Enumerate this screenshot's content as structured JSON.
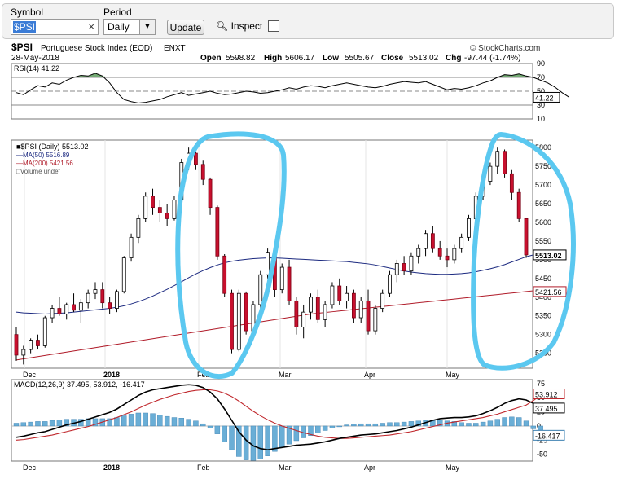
{
  "toolbar": {
    "symbol_label": "Symbol",
    "symbol_value": "$PSI",
    "period_label": "Period",
    "period_value": "Daily",
    "update_label": "Update",
    "inspect_label": "Inspect"
  },
  "header": {
    "ticker": "$PSI",
    "name": "Portuguese Stock Index (EOD)",
    "exchange": "ENXT",
    "source": "© StockCharts.com",
    "date": "28-May-2018",
    "open_label": "Open",
    "open": "5598.82",
    "high_label": "High",
    "high": "5606.17",
    "low_label": "Low",
    "low": "5505.67",
    "close_label": "Close",
    "close": "5513.02",
    "chg_label": "Chg",
    "chg": "-97.44 (-1.74%)"
  },
  "chart_data": [
    {
      "type": "line",
      "title": "RSI(14) 41.22",
      "ylim": [
        10,
        90
      ],
      "ticks": [
        "10",
        "30",
        "50",
        "70",
        "90"
      ],
      "reference_lines": [
        30,
        50,
        70
      ],
      "last_value_label": "41.22",
      "last_value": 41.22,
      "series": [
        {
          "name": "RSI(14)",
          "color": "#000000",
          "values": [
            48,
            45,
            52,
            58,
            56,
            62,
            60,
            66,
            70,
            73,
            72,
            76,
            72,
            62,
            48,
            38,
            35,
            33,
            34,
            36,
            38,
            42,
            45,
            48,
            44,
            46,
            48,
            50,
            47,
            45,
            46,
            48,
            50,
            49,
            47,
            48,
            50,
            52,
            55,
            53,
            56,
            58,
            57,
            55,
            58,
            60,
            62,
            60,
            58,
            56,
            55,
            57,
            60,
            62,
            64,
            63,
            62,
            64,
            60,
            56,
            52,
            54,
            53,
            55,
            58,
            62,
            65,
            70,
            74,
            73,
            75,
            72,
            70,
            66,
            62,
            56,
            48,
            41.22
          ]
        }
      ]
    },
    {
      "type": "candlestick",
      "legend": [
        "$PSI (Daily) 5513.02",
        "MA(50) 5516.89",
        "MA(200) 5421.56",
        "Volume undef"
      ],
      "ylim": [
        5210,
        5820
      ],
      "ticks": [
        "5250",
        "5300",
        "5350",
        "5400",
        "5450",
        "5500",
        "5550",
        "5600",
        "5650",
        "5700",
        "5750",
        "5800"
      ],
      "xlabels": [
        "Dec",
        "2018",
        "Feb",
        "Mar",
        "Apr",
        "May"
      ],
      "price_tags": [
        "5513.02",
        "5421.56"
      ],
      "ohlc": [
        [
          5300,
          5320,
          5230,
          5245
        ],
        [
          5245,
          5270,
          5220,
          5260
        ],
        [
          5260,
          5290,
          5250,
          5285
        ],
        [
          5285,
          5300,
          5260,
          5270
        ],
        [
          5270,
          5350,
          5265,
          5345
        ],
        [
          5345,
          5380,
          5330,
          5370
        ],
        [
          5370,
          5400,
          5350,
          5355
        ],
        [
          5355,
          5385,
          5340,
          5380
        ],
        [
          5380,
          5410,
          5360,
          5365
        ],
        [
          5365,
          5395,
          5330,
          5385
        ],
        [
          5385,
          5420,
          5370,
          5410
        ],
        [
          5410,
          5440,
          5395,
          5420
        ],
        [
          5420,
          5440,
          5370,
          5385
        ],
        [
          5385,
          5400,
          5355,
          5370
        ],
        [
          5370,
          5420,
          5360,
          5415
        ],
        [
          5415,
          5510,
          5410,
          5505
        ],
        [
          5505,
          5570,
          5495,
          5560
        ],
        [
          5560,
          5620,
          5545,
          5610
        ],
        [
          5610,
          5680,
          5600,
          5670
        ],
        [
          5670,
          5690,
          5620,
          5640
        ],
        [
          5640,
          5660,
          5600,
          5625
        ],
        [
          5625,
          5650,
          5590,
          5610
        ],
        [
          5610,
          5670,
          5605,
          5660
        ],
        [
          5660,
          5770,
          5655,
          5760
        ],
        [
          5760,
          5800,
          5740,
          5785
        ],
        [
          5785,
          5790,
          5740,
          5755
        ],
        [
          5755,
          5765,
          5700,
          5715
        ],
        [
          5715,
          5720,
          5620,
          5640
        ],
        [
          5640,
          5645,
          5500,
          5510
        ],
        [
          5510,
          5515,
          5400,
          5410
        ],
        [
          5410,
          5420,
          5250,
          5260
        ],
        [
          5260,
          5420,
          5255,
          5410
        ],
        [
          5410,
          5415,
          5300,
          5310
        ],
        [
          5310,
          5390,
          5290,
          5380
        ],
        [
          5380,
          5470,
          5370,
          5460
        ],
        [
          5460,
          5530,
          5450,
          5520
        ],
        [
          5520,
          5525,
          5400,
          5420
        ],
        [
          5420,
          5490,
          5410,
          5480
        ],
        [
          5480,
          5500,
          5380,
          5390
        ],
        [
          5390,
          5400,
          5300,
          5320
        ],
        [
          5320,
          5380,
          5290,
          5360
        ],
        [
          5360,
          5410,
          5340,
          5400
        ],
        [
          5400,
          5420,
          5330,
          5340
        ],
        [
          5340,
          5390,
          5320,
          5380
        ],
        [
          5380,
          5440,
          5370,
          5430
        ],
        [
          5430,
          5450,
          5380,
          5390
        ],
        [
          5390,
          5430,
          5370,
          5410
        ],
        [
          5410,
          5420,
          5330,
          5345
        ],
        [
          5345,
          5400,
          5330,
          5390
        ],
        [
          5390,
          5420,
          5300,
          5310
        ],
        [
          5310,
          5380,
          5300,
          5370
        ],
        [
          5370,
          5420,
          5360,
          5410
        ],
        [
          5410,
          5470,
          5400,
          5460
        ],
        [
          5460,
          5500,
          5440,
          5490
        ],
        [
          5490,
          5510,
          5460,
          5470
        ],
        [
          5470,
          5520,
          5460,
          5510
        ],
        [
          5510,
          5540,
          5490,
          5530
        ],
        [
          5530,
          5580,
          5510,
          5570
        ],
        [
          5570,
          5590,
          5520,
          5530
        ],
        [
          5530,
          5550,
          5500,
          5510
        ],
        [
          5510,
          5530,
          5480,
          5500
        ],
        [
          5500,
          5540,
          5490,
          5530
        ],
        [
          5530,
          5570,
          5520,
          5560
        ],
        [
          5560,
          5620,
          5550,
          5610
        ],
        [
          5610,
          5680,
          5600,
          5670
        ],
        [
          5670,
          5720,
          5660,
          5710
        ],
        [
          5710,
          5760,
          5700,
          5750
        ],
        [
          5750,
          5800,
          5730,
          5790
        ],
        [
          5790,
          5795,
          5720,
          5730
        ],
        [
          5730,
          5740,
          5660,
          5680
        ],
        [
          5680,
          5690,
          5600,
          5610
        ],
        [
          5610,
          5610,
          5505,
          5513
        ]
      ],
      "series": [
        {
          "name": "MA(50)",
          "color": "#1c2a80",
          "values": [
            5360,
            5358,
            5357,
            5356,
            5355,
            5356,
            5357,
            5358,
            5360,
            5362,
            5364,
            5366,
            5368,
            5370,
            5373,
            5377,
            5382,
            5388,
            5395,
            5403,
            5412,
            5421,
            5431,
            5441,
            5452,
            5462,
            5471,
            5479,
            5486,
            5492,
            5496,
            5499,
            5501,
            5503,
            5504,
            5505,
            5505,
            5504,
            5503,
            5502,
            5501,
            5500,
            5499,
            5498,
            5497,
            5496,
            5495,
            5493,
            5491,
            5489,
            5486,
            5482,
            5478,
            5474,
            5470,
            5467,
            5465,
            5463,
            5462,
            5461,
            5461,
            5462,
            5463,
            5465,
            5468,
            5472,
            5476,
            5481,
            5487,
            5494,
            5501,
            5508,
            5513,
            5516.89
          ]
        },
        {
          "name": "MA(200)",
          "color": "#b01c2a",
          "values": [
            5232,
            5235,
            5238,
            5241,
            5244,
            5247,
            5250,
            5253,
            5256,
            5259,
            5262,
            5265,
            5268,
            5271,
            5274,
            5277,
            5280,
            5283,
            5286,
            5289,
            5292,
            5295,
            5298,
            5301,
            5304,
            5307,
            5310,
            5313,
            5316,
            5319,
            5322,
            5325,
            5328,
            5331,
            5334,
            5337,
            5340,
            5343,
            5346,
            5349,
            5352,
            5355,
            5357,
            5359,
            5361,
            5363,
            5365,
            5367,
            5369,
            5371,
            5373,
            5375,
            5377,
            5379,
            5381,
            5383,
            5385,
            5387,
            5389,
            5391,
            5393,
            5395,
            5397,
            5399,
            5401,
            5403,
            5405,
            5407,
            5409,
            5411,
            5413,
            5415,
            5417,
            5421.56
          ]
        }
      ]
    },
    {
      "type": "line",
      "title": "MACD(12,26,9) 37.495, 53.912, -16.417",
      "ylim": [
        -62,
        82
      ],
      "ticks": [
        "75",
        "50",
        "25",
        "0",
        "-25",
        "-50"
      ],
      "xlabels": [
        "Dec",
        "2018",
        "Feb",
        "Mar",
        "Apr",
        "May"
      ],
      "value_tags": [
        "53.912",
        "37.495",
        "-16.417"
      ],
      "series": [
        {
          "name": "MACD",
          "color": "#000000",
          "values": [
            -20,
            -18,
            -15,
            -12,
            -10,
            -6,
            -2,
            2,
            5,
            8,
            12,
            16,
            20,
            24,
            30,
            38,
            46,
            54,
            60,
            64,
            66,
            68,
            70,
            72,
            73,
            72,
            68,
            60,
            48,
            30,
            10,
            -10,
            -25,
            -35,
            -40,
            -42,
            -40,
            -38,
            -36,
            -34,
            -33,
            -32,
            -30,
            -28,
            -25,
            -22,
            -20,
            -18,
            -16,
            -15,
            -14,
            -12,
            -10,
            -8,
            -5,
            -2,
            2,
            6,
            10,
            13,
            14,
            15,
            15,
            16,
            18,
            22,
            27,
            33,
            40,
            45,
            48,
            46,
            40,
            37.495
          ]
        },
        {
          "name": "Signal",
          "color": "#c0282d",
          "values": [
            -25,
            -24,
            -22,
            -20,
            -18,
            -16,
            -13,
            -10,
            -7,
            -4,
            -1,
            3,
            7,
            11,
            15,
            20,
            25,
            31,
            37,
            42,
            47,
            51,
            55,
            58,
            61,
            63,
            64,
            64,
            62,
            58,
            52,
            44,
            35,
            26,
            18,
            11,
            5,
            0,
            -4,
            -8,
            -12,
            -15,
            -18,
            -20,
            -21,
            -22,
            -22,
            -21,
            -20,
            -19,
            -18,
            -17,
            -16,
            -14,
            -12,
            -10,
            -7,
            -4,
            -1,
            2,
            5,
            7,
            9,
            11,
            13,
            15,
            18,
            21,
            25,
            29,
            33,
            37,
            45,
            53.912
          ]
        },
        {
          "name": "Histogram",
          "color": "#6aaed6",
          "type": "bar",
          "values": [
            5,
            6,
            7,
            8,
            8,
            10,
            11,
            12,
            12,
            12,
            13,
            13,
            13,
            13,
            15,
            18,
            21,
            23,
            23,
            22,
            19,
            17,
            15,
            14,
            12,
            9,
            4,
            -4,
            -14,
            -28,
            -42,
            -54,
            -60,
            -61,
            -58,
            -53,
            -45,
            -38,
            -32,
            -26,
            -21,
            -17,
            -12,
            -8,
            -4,
            0,
            2,
            3,
            4,
            4,
            4,
            5,
            6,
            6,
            7,
            8,
            9,
            10,
            11,
            11,
            9,
            8,
            6,
            5,
            5,
            7,
            9,
            12,
            15,
            16,
            15,
            9,
            -5,
            -16.417
          ]
        }
      ]
    }
  ]
}
